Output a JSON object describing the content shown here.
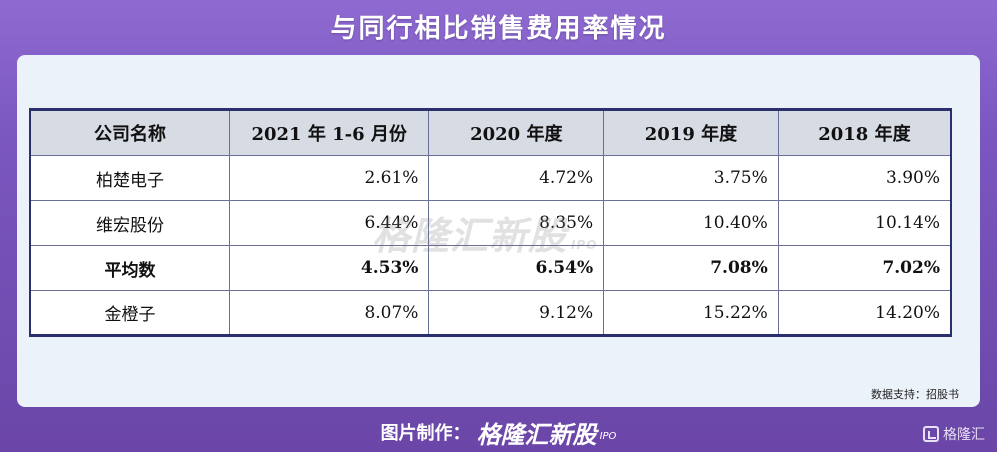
{
  "title": "与同行相比销售费用率情况",
  "table": {
    "headers": [
      "公司名称",
      "2021 年 1-6 月份",
      "2020 年度",
      "2019 年度",
      "2018 年度"
    ],
    "rows": [
      {
        "name": "柏楚电子",
        "values": [
          "2.61%",
          "4.72%",
          "3.75%",
          "3.90%"
        ],
        "bold": false
      },
      {
        "name": "维宏股份",
        "values": [
          "6.44%",
          "8.35%",
          "10.40%",
          "10.14%"
        ],
        "bold": false
      },
      {
        "name": "平均数",
        "values": [
          "4.53%",
          "6.54%",
          "7.08%",
          "7.02%"
        ],
        "bold": true
      },
      {
        "name": "金橙子",
        "values": [
          "8.07%",
          "9.12%",
          "15.22%",
          "14.20%"
        ],
        "bold": false
      }
    ]
  },
  "watermark": {
    "text": "格隆汇新股",
    "sub": "IPO"
  },
  "source": "数据支持：招股书",
  "footer": {
    "label": "图片制作：",
    "brand": "格隆汇新股",
    "brand_sub": "IPO"
  },
  "corner_logo": {
    "text": "格隆汇",
    "icon": "gelonghui-logo-icon"
  },
  "colors": {
    "background": "#7a57bf",
    "card": "#ebf2f9",
    "header_bg": "#d6dbe4",
    "border": "#2c2f6e"
  }
}
